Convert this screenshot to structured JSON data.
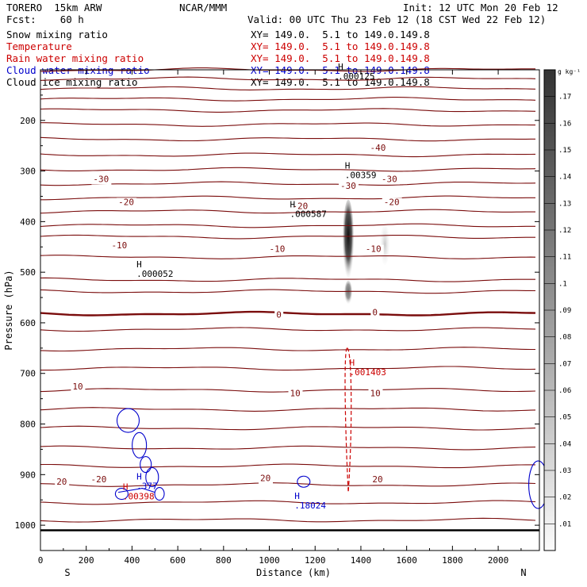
{
  "header": {
    "model": "TORERO  15km ARW",
    "org": "NCAR/MMM",
    "init": "Init: 12 UTC Mon 20 Feb 12",
    "fcst": "Fcst:    60 h",
    "valid": "Valid: 00 UTC Thu 23 Feb 12 (18 CST Wed 22 Feb 12)"
  },
  "legend": [
    {
      "label": "Snow mixing ratio",
      "xy": "XY= 149.0.  5.1 to 149.0.149.8",
      "color": "#000000"
    },
    {
      "label": "Temperature",
      "xy": "XY= 149.0.  5.1 to 149.0.149.8",
      "color": "#cc0000"
    },
    {
      "label": "Rain water mixing ratio",
      "xy": "XY= 149.0.  5.1 to 149.0.149.8",
      "color": "#cc0000"
    },
    {
      "label": "Cloud water mixing ratio",
      "xy": "XY= 149.0.  5.1 to 149.0.149.8",
      "color": "#0000cc"
    },
    {
      "label": "Cloud ice mixing ratio",
      "xy": "XY= 149.0.  5.1 to 149.0.149.8",
      "color": "#000000"
    }
  ],
  "chart_data": {
    "type": "cross-section",
    "xlabel": "Distance (km)",
    "ylabel": "Pressure (hPa)",
    "xlim": [
      0,
      2180
    ],
    "ylim": [
      1050,
      100
    ],
    "x_ticks": [
      0,
      200,
      400,
      600,
      800,
      1000,
      1200,
      1400,
      1600,
      1800,
      2000
    ],
    "y_ticks": [
      200,
      300,
      400,
      500,
      600,
      700,
      800,
      900,
      1000
    ],
    "x_end_labels": {
      "left": "S",
      "right": "N"
    },
    "colorbar": {
      "unit": "g kg⁻¹",
      "levels": [
        0.01,
        0.02,
        0.03,
        0.04,
        0.05,
        0.06,
        0.07,
        0.08,
        0.09,
        0.1,
        0.11,
        0.12,
        0.13,
        0.14,
        0.15,
        0.16,
        0.17
      ],
      "labels": [
        ".01",
        ".02",
        ".03",
        ".04",
        ".05",
        ".06",
        ".07",
        ".08",
        ".09",
        ".1",
        ".11",
        ".12",
        ".13",
        ".14",
        ".15",
        ".16",
        ".17"
      ]
    },
    "isotherm_pressures": [
      100,
      118,
      137,
      158,
      180,
      208,
      237,
      268,
      297,
      325,
      353,
      380,
      408,
      430,
      470,
      515,
      538,
      582,
      613,
      652,
      690,
      733,
      771,
      808,
      847,
      883,
      920,
      955,
      990
    ],
    "isotherm_labels": [
      {
        "text": "-40",
        "x": 1440,
        "p": 260
      },
      {
        "text": "-30",
        "x": 230,
        "p": 322
      },
      {
        "text": "-30",
        "x": 1490,
        "p": 322
      },
      {
        "text": "-20",
        "x": 340,
        "p": 367
      },
      {
        "text": "-20",
        "x": 1500,
        "p": 367
      },
      {
        "text": "-10",
        "x": 310,
        "p": 453
      },
      {
        "text": "-10",
        "x": 1000,
        "p": 460
      },
      {
        "text": "-10",
        "x": 1420,
        "p": 460
      },
      {
        "text": "0",
        "x": 1030,
        "p": 590
      },
      {
        "text": "0",
        "x": 1450,
        "p": 585
      },
      {
        "text": "10",
        "x": 140,
        "p": 732
      },
      {
        "text": "10",
        "x": 1090,
        "p": 745
      },
      {
        "text": "10",
        "x": 1440,
        "p": 745
      },
      {
        "text": "20",
        "x": 70,
        "p": 920
      },
      {
        "text": "-20",
        "x": 220,
        "p": 915
      },
      {
        "text": "20",
        "x": 960,
        "p": 913
      },
      {
        "text": "20",
        "x": 1450,
        "p": 915
      },
      {
        "text": "-30",
        "x": 1310,
        "p": 335
      },
      {
        "text": "-20",
        "x": 1100,
        "p": 375
      }
    ],
    "snow_max": [
      {
        "x": 1300,
        "p": 100,
        "label": ".000125",
        "color": "#000000"
      },
      {
        "x": 1330,
        "p": 295,
        "label": ".00359",
        "color": "#000000"
      },
      {
        "x": 1090,
        "p": 372,
        "label": ".000587",
        "color": "#000000"
      },
      {
        "x": 420,
        "p": 490,
        "label": ".000052",
        "color": "#000000"
      }
    ],
    "rain_max": [
      {
        "x": 1350,
        "p": 685,
        "label": ".001403",
        "color": "#cc0000"
      },
      {
        "x": 360,
        "p": 930,
        "label": ".00398",
        "color": "#cc0000"
      }
    ],
    "cloud_water_max": [
      {
        "x": 420,
        "p": 910,
        "label": ".377",
        "color": "#0000cc"
      },
      {
        "x": 1110,
        "p": 948,
        "label": ".18024",
        "color": "#0000cc"
      }
    ]
  }
}
